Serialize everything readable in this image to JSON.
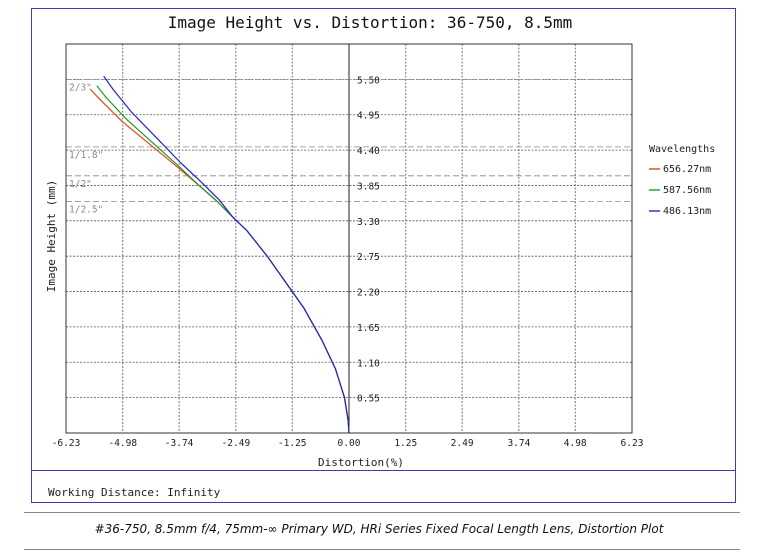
{
  "chart_data": {
    "type": "line",
    "title": "Image Height vs. Distortion: 36-750, 8.5mm",
    "xlabel": "Distortion(%)",
    "ylabel": "Image Height (mm)",
    "xlim": [
      -6.23,
      6.23
    ],
    "ylim": [
      0,
      6.05
    ],
    "x_ticks": [
      "-6.23",
      "-4.98",
      "-3.74",
      "-2.49",
      "-1.25",
      "0.00",
      "1.25",
      "2.49",
      "3.74",
      "4.98",
      "6.23"
    ],
    "x_tick_values": [
      -6.23,
      -4.98,
      -3.74,
      -2.49,
      -1.25,
      0,
      1.25,
      2.49,
      3.74,
      4.98,
      6.23
    ],
    "y_ticks": [
      "0.55",
      "1.10",
      "1.65",
      "2.20",
      "2.75",
      "3.30",
      "3.85",
      "4.40",
      "4.95",
      "5.50"
    ],
    "y_tick_values": [
      0.55,
      1.1,
      1.65,
      2.2,
      2.75,
      3.3,
      3.85,
      4.4,
      4.95,
      5.5
    ],
    "grid": true,
    "legend_title": "Wavelengths",
    "legend_position": "right",
    "sensor_formats": [
      {
        "label": "2/3\"",
        "y": 5.5
      },
      {
        "label": "1/1.8\"",
        "y": 4.45
      },
      {
        "label": "1/2\"",
        "y": 4.0
      },
      {
        "label": "1/2.5\"",
        "y": 3.6
      }
    ],
    "series": [
      {
        "name": "656.27nm",
        "color": "#e8441a",
        "x": [
          0,
          -0.02,
          -0.1,
          -0.3,
          -0.6,
          -1.0,
          -1.35,
          -1.8,
          -2.25,
          -2.55,
          -2.9,
          -3.3,
          -3.8,
          -4.4,
          -5.0,
          -5.5,
          -5.7
        ],
        "y": [
          0,
          0.2,
          0.55,
          1.0,
          1.45,
          1.95,
          2.3,
          2.75,
          3.15,
          3.35,
          3.6,
          3.85,
          4.15,
          4.5,
          4.85,
          5.2,
          5.35
        ]
      },
      {
        "name": "587.56nm",
        "color": "#1c9c2a",
        "x": [
          0,
          -0.02,
          -0.1,
          -0.3,
          -0.6,
          -1.0,
          -1.35,
          -1.8,
          -2.25,
          -2.55,
          -2.9,
          -3.3,
          -3.75,
          -4.3,
          -4.9,
          -5.35,
          -5.55
        ],
        "y": [
          0,
          0.2,
          0.55,
          1.0,
          1.45,
          1.95,
          2.3,
          2.75,
          3.15,
          3.35,
          3.6,
          3.85,
          4.15,
          4.5,
          4.88,
          5.22,
          5.4
        ]
      },
      {
        "name": "486.13nm",
        "color": "#2424c8",
        "x": [
          0,
          -0.02,
          -0.1,
          -0.3,
          -0.6,
          -1.0,
          -1.35,
          -1.8,
          -2.25,
          -2.55,
          -2.85,
          -3.25,
          -3.7,
          -4.25,
          -4.8,
          -5.2,
          -5.4
        ],
        "y": [
          0,
          0.2,
          0.55,
          1.0,
          1.45,
          1.95,
          2.3,
          2.75,
          3.15,
          3.35,
          3.62,
          3.9,
          4.2,
          4.6,
          5.0,
          5.35,
          5.55
        ]
      }
    ]
  },
  "footer": {
    "working_distance": "Working Distance: Infinity",
    "caption": "#36-750, 8.5mm f/4, 75mm-∞ Primary WD, HRi Series Fixed Focal Length Lens, Distortion Plot"
  }
}
